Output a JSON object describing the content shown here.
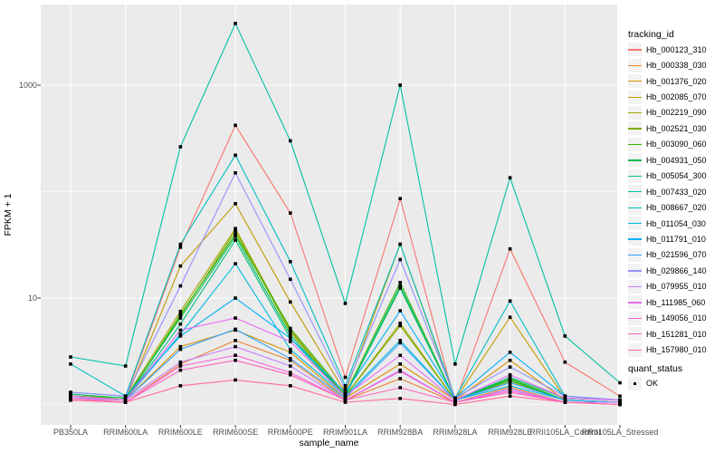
{
  "legend": {
    "tracking_title": "tracking_id",
    "quant_title": "quant_status",
    "quant_value": "OK"
  },
  "chart_data": {
    "type": "line",
    "title": "",
    "xlabel": "sample_name",
    "ylabel": "FPKM + 1",
    "y_scale": "log10",
    "y_tick_labels": [
      "1000",
      "10"
    ],
    "y_tick_values": [
      1000,
      10
    ],
    "y_minor_gridline_values": [
      100,
      1
    ],
    "ylim": [
      0.66,
      5500
    ],
    "grid": true,
    "panel_bg": "#EBEBEB",
    "grid_color": "#FFFFFF",
    "point_marker": "filled-black-square",
    "legend_position": "right",
    "categories": [
      "PB350LA",
      "RRIM600LA",
      "RRIM600LE",
      "RRIM600SE",
      "RRIM600PE",
      "RRIM901LA",
      "RRIM928BA",
      "RRIM928LA",
      "RRIM928LE",
      "RRII105LA_Control",
      "RRII105LA_Stressed"
    ],
    "series": [
      {
        "name": "Hb_000123_310",
        "color": "#F8766D",
        "values": [
          1.2,
          1.15,
          30,
          420,
          63,
          1.8,
          86,
          1.05,
          29,
          2.5,
          1.2
        ]
      },
      {
        "name": "Hb_000338_030",
        "color": "#EA8331",
        "values": [
          1.1,
          1.05,
          2.4,
          4.0,
          2.6,
          1.1,
          1.75,
          1.05,
          1.45,
          1.05,
          1.05
        ]
      },
      {
        "name": "Hb_001376_020",
        "color": "#D89000",
        "values": [
          1.15,
          1.1,
          3.5,
          5.0,
          3.1,
          1.15,
          2.4,
          1.1,
          2.6,
          1.1,
          1.05
        ]
      },
      {
        "name": "Hb_002085_070",
        "color": "#C09B00",
        "values": [
          1.2,
          1.1,
          20,
          77,
          9.2,
          1.3,
          32,
          1.1,
          6.6,
          1.15,
          1.1
        ]
      },
      {
        "name": "Hb_002219_090",
        "color": "#A3A500",
        "values": [
          1.2,
          1.15,
          7.5,
          45,
          5.0,
          1.2,
          5.8,
          1.1,
          1.7,
          1.1,
          1.05
        ]
      },
      {
        "name": "Hb_002521_030",
        "color": "#7CAE00",
        "values": [
          1.15,
          1.1,
          6.8,
          43,
          4.8,
          1.2,
          5.5,
          1.1,
          1.65,
          1.1,
          1.05
        ]
      },
      {
        "name": "Hb_003090_060",
        "color": "#39B600",
        "values": [
          1.2,
          1.1,
          7.0,
          40,
          5.2,
          1.25,
          14,
          1.1,
          1.75,
          1.1,
          1.05
        ]
      },
      {
        "name": "Hb_004931_050",
        "color": "#00BB4E",
        "values": [
          1.25,
          1.15,
          6.5,
          38,
          4.5,
          1.2,
          12.4,
          1.1,
          1.7,
          1.1,
          1.05
        ]
      },
      {
        "name": "Hb_005054_300",
        "color": "#00BF7D",
        "values": [
          1.2,
          1.1,
          5.7,
          35,
          4.2,
          1.2,
          13,
          1.1,
          1.8,
          1.15,
          1.1
        ]
      },
      {
        "name": "Hb_007433_020",
        "color": "#00C1A3",
        "values": [
          2.8,
          2.3,
          264,
          3800,
          300,
          8.9,
          1000,
          2.4,
          135,
          4.4,
          1.6
        ]
      },
      {
        "name": "Hb_008667_020",
        "color": "#00BFC4",
        "values": [
          2.4,
          1.2,
          32,
          220,
          22,
          1.5,
          32,
          1.15,
          9.4,
          1.2,
          1.1
        ]
      },
      {
        "name": "Hb_011054_030",
        "color": "#00BAE0",
        "values": [
          1.2,
          1.1,
          4.6,
          21,
          3.3,
          1.2,
          4.0,
          1.1,
          1.5,
          1.1,
          1.05
        ]
      },
      {
        "name": "Hb_011791_010",
        "color": "#00B0F6",
        "values": [
          1.3,
          1.2,
          4.4,
          10,
          4.2,
          1.3,
          7.6,
          1.15,
          3.1,
          1.2,
          1.1
        ]
      },
      {
        "name": "Hb_021596_070",
        "color": "#35A2FF",
        "values": [
          1.2,
          1.1,
          3.3,
          5.1,
          2.7,
          1.15,
          3.8,
          1.1,
          1.6,
          1.1,
          1.05
        ]
      },
      {
        "name": "Hb_029866_140",
        "color": "#9590FF",
        "values": [
          1.3,
          1.2,
          13,
          150,
          15,
          1.4,
          23,
          1.15,
          2.25,
          1.2,
          1.1
        ]
      },
      {
        "name": "Hb_079955_010",
        "color": "#C77CFF",
        "values": [
          1.15,
          1.1,
          2.5,
          3.5,
          2.3,
          1.1,
          2.1,
          1.05,
          1.4,
          1.05,
          1.05
        ]
      },
      {
        "name": "Hb_111985_060",
        "color": "#E76BF3",
        "values": [
          1.2,
          1.1,
          5.0,
          6.5,
          3.9,
          1.2,
          2.9,
          1.1,
          1.9,
          1.15,
          1.1
        ]
      },
      {
        "name": "Hb_149056_010",
        "color": "#FA62DB",
        "values": [
          1.15,
          1.05,
          2.3,
          2.9,
          2.0,
          1.1,
          2.05,
          1.05,
          1.35,
          1.05,
          1.0
        ]
      },
      {
        "name": "Hb_151281_010",
        "color": "#FF62BC",
        "values": [
          1.1,
          1.05,
          2.1,
          2.6,
          1.9,
          1.1,
          1.44,
          1.05,
          1.3,
          1.05,
          1.0
        ]
      },
      {
        "name": "Hb_157980_010",
        "color": "#FF6A98",
        "values": [
          1.1,
          1.05,
          1.5,
          1.7,
          1.5,
          1.05,
          1.14,
          1.0,
          1.2,
          1.05,
          1.0
        ]
      }
    ]
  }
}
